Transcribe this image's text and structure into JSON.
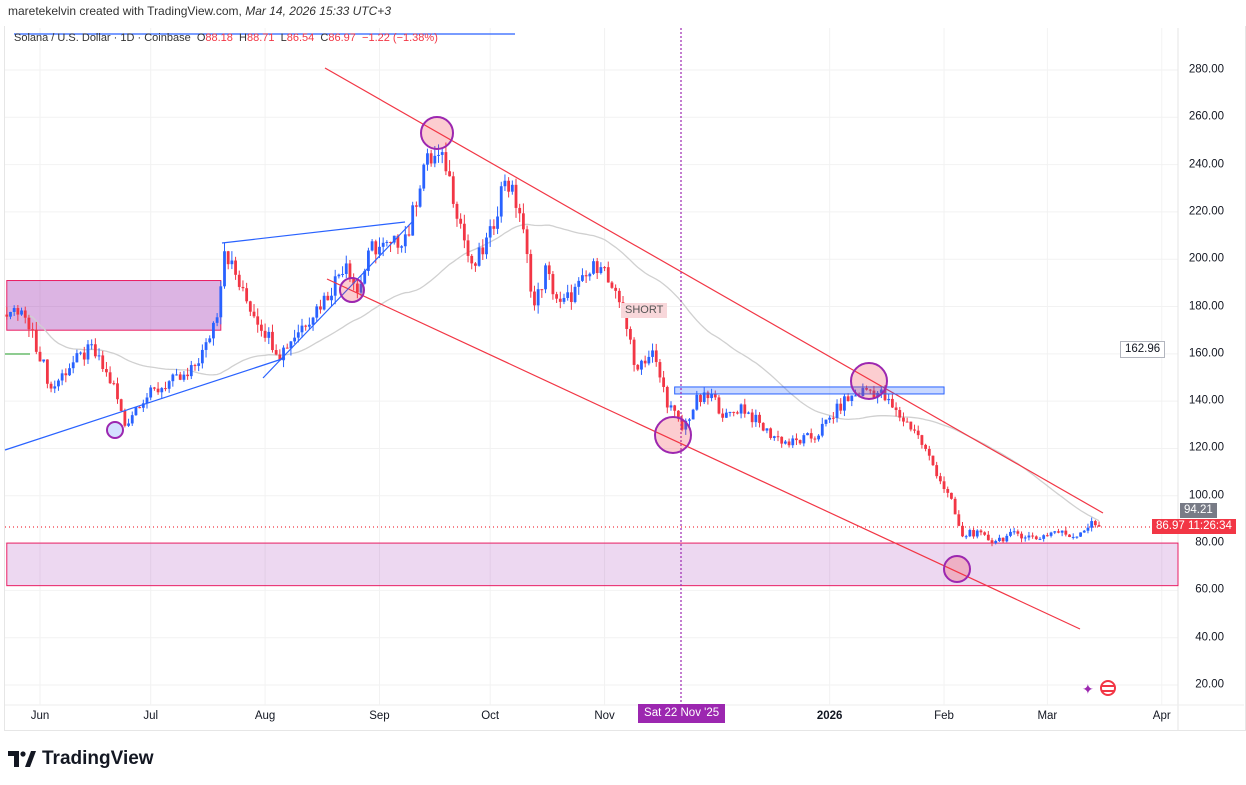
{
  "caption": {
    "author_text": "maretekelvin created with TradingView.com, ",
    "timestamp": "Mar 14, 2026 15:33 UTC+3"
  },
  "legend": {
    "symbol": "Solana / U.S. Dollar · 1D · Coinbase",
    "o_label": "O",
    "o": "88.18",
    "h_label": "H",
    "h": "88.71",
    "l_label": "L",
    "l": "86.54",
    "c_label": "C",
    "c": "86.97",
    "change": "−1.22 (−1.38%)"
  },
  "y_axis": {
    "labels": [
      "280.00",
      "260.00",
      "240.00",
      "220.00",
      "200.00",
      "180.00",
      "160.00",
      "140.00",
      "120.00",
      "100.00",
      "80.00",
      "60.00",
      "40.00",
      "20.00"
    ],
    "ma_value": "162.96",
    "ma_tag": "94.21",
    "price_tag": "86.97",
    "countdown": "11:26:34"
  },
  "x_axis": {
    "labels": [
      {
        "text": "Jun",
        "day": 0
      },
      {
        "text": "Jul",
        "day": 30
      },
      {
        "text": "Aug",
        "day": 61
      },
      {
        "text": "Sep",
        "day": 92
      },
      {
        "text": "Oct",
        "day": 122
      },
      {
        "text": "Nov",
        "day": 153
      },
      {
        "text": "2026",
        "day": 214,
        "year": true
      },
      {
        "text": "Feb",
        "day": 245
      },
      {
        "text": "Mar",
        "day": 273
      },
      {
        "text": "Apr",
        "day": 304
      }
    ],
    "crosshair_label": "Sat 22 Nov '25",
    "crosshair_day": 174
  },
  "annotations": {
    "short_label": "SHORT"
  },
  "footer": {
    "brand": "TradingView"
  },
  "colors": {
    "up": "#2962ff",
    "down": "#f23645",
    "ma": "#d4d4d4",
    "zone": "#9c27b0",
    "channel": "#f23645",
    "trend": "#2962ff",
    "crosshair": "#9c27b0"
  },
  "chart_data": {
    "type": "candlestick",
    "title": "Solana / U.S. Dollar · 1D · Coinbase",
    "ylim": [
      20,
      290
    ],
    "x_unit": "days since Jun 1 2025",
    "last_close": 86.97,
    "close_anchors": [
      [
        -9,
        176
      ],
      [
        -5,
        178
      ],
      [
        0,
        160
      ],
      [
        3,
        145
      ],
      [
        8,
        155
      ],
      [
        14,
        162
      ],
      [
        20,
        146
      ],
      [
        22,
        135
      ],
      [
        23,
        130
      ],
      [
        27,
        140
      ],
      [
        35,
        148
      ],
      [
        40,
        150
      ],
      [
        45,
        163
      ],
      [
        48,
        178
      ],
      [
        50,
        205
      ],
      [
        55,
        185
      ],
      [
        60,
        172
      ],
      [
        65,
        160
      ],
      [
        70,
        170
      ],
      [
        78,
        185
      ],
      [
        83,
        200
      ],
      [
        86,
        186
      ],
      [
        90,
        205
      ],
      [
        95,
        205
      ],
      [
        100,
        212
      ],
      [
        104,
        240
      ],
      [
        107,
        243
      ],
      [
        110,
        240
      ],
      [
        114,
        215
      ],
      [
        117,
        195
      ],
      [
        122,
        210
      ],
      [
        126,
        235
      ],
      [
        130,
        220
      ],
      [
        134,
        180
      ],
      [
        137,
        195
      ],
      [
        141,
        180
      ],
      [
        147,
        190
      ],
      [
        152,
        200
      ],
      [
        155,
        185
      ],
      [
        158,
        180
      ],
      [
        161,
        155
      ],
      [
        166,
        160
      ],
      [
        170,
        140
      ],
      [
        174,
        128
      ],
      [
        178,
        140
      ],
      [
        182,
        142
      ],
      [
        186,
        133
      ],
      [
        190,
        138
      ],
      [
        197,
        127
      ],
      [
        203,
        122
      ],
      [
        210,
        125
      ],
      [
        218,
        140
      ],
      [
        224,
        145
      ],
      [
        228,
        143
      ],
      [
        232,
        135
      ],
      [
        237,
        128
      ],
      [
        243,
        110
      ],
      [
        247,
        97
      ],
      [
        250,
        82
      ],
      [
        252,
        85
      ],
      [
        258,
        81
      ],
      [
        265,
        84
      ],
      [
        270,
        82
      ],
      [
        275,
        85
      ],
      [
        280,
        83
      ],
      [
        285,
        88
      ],
      [
        287,
        86.97
      ]
    ],
    "ma_period": 50,
    "zones": [
      {
        "from_day": -9,
        "to_day": 49,
        "top": 191,
        "bottom": 170
      },
      {
        "from_day": -9,
        "to_day": 310,
        "top": 80,
        "bottom": 62
      }
    ],
    "resistance_box": {
      "from_day": 172,
      "to_day": 245,
      "top": 146,
      "bottom": 144
    }
  }
}
